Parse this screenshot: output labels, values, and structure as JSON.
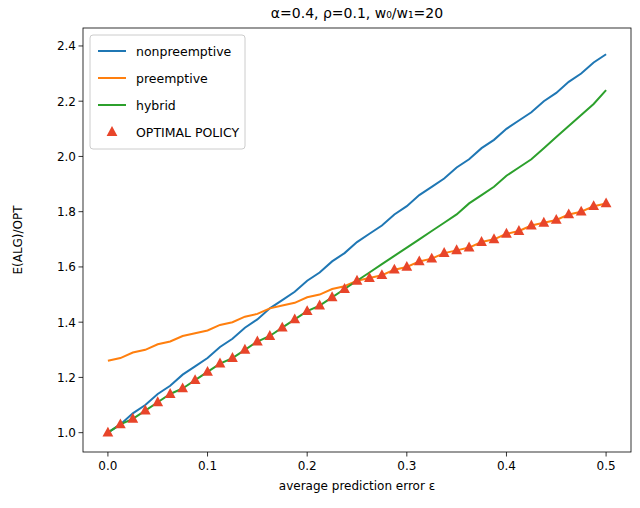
{
  "chart_data": {
    "type": "line",
    "title": "α=0.4, ρ=0.1, w₀/w₁=20",
    "x_label": "average prediction error ε",
    "y_label": "E(ALG)/OPT",
    "x": [
      0,
      0.0125,
      0.025,
      0.0375,
      0.05,
      0.0625,
      0.075,
      0.0875,
      0.1,
      0.1125,
      0.125,
      0.1375,
      0.15,
      0.1625,
      0.175,
      0.1875,
      0.2,
      0.2125,
      0.225,
      0.2375,
      0.25,
      0.2625,
      0.275,
      0.2875,
      0.3,
      0.3125,
      0.325,
      0.3375,
      0.35,
      0.3625,
      0.375,
      0.3875,
      0.4,
      0.4125,
      0.425,
      0.4375,
      0.45,
      0.4625,
      0.475,
      0.4875,
      0.5
    ],
    "series": [
      {
        "name": "nonpreemptive",
        "color": "#1f77b4",
        "type": "line",
        "line_style": "solid",
        "values": [
          1.0,
          1.03,
          1.07,
          1.1,
          1.14,
          1.17,
          1.21,
          1.24,
          1.27,
          1.31,
          1.34,
          1.38,
          1.41,
          1.45,
          1.48,
          1.51,
          1.55,
          1.58,
          1.62,
          1.65,
          1.69,
          1.72,
          1.75,
          1.79,
          1.82,
          1.86,
          1.89,
          1.92,
          1.96,
          1.99,
          2.03,
          2.06,
          2.1,
          2.13,
          2.16,
          2.2,
          2.23,
          2.27,
          2.3,
          2.34,
          2.37
        ]
      },
      {
        "name": "preemptive",
        "color": "#ff7f0e",
        "type": "line",
        "line_style": "solid",
        "values": [
          1.26,
          1.27,
          1.29,
          1.3,
          1.32,
          1.33,
          1.35,
          1.36,
          1.37,
          1.39,
          1.4,
          1.42,
          1.43,
          1.45,
          1.46,
          1.47,
          1.49,
          1.5,
          1.52,
          1.53,
          1.55,
          1.56,
          1.57,
          1.59,
          1.6,
          1.62,
          1.63,
          1.65,
          1.66,
          1.67,
          1.69,
          1.7,
          1.72,
          1.73,
          1.75,
          1.76,
          1.77,
          1.79,
          1.8,
          1.82,
          1.83
        ]
      },
      {
        "name": "hybrid",
        "color": "#2ca02c",
        "type": "line",
        "line_style": "solid",
        "values": [
          1.0,
          1.03,
          1.05,
          1.08,
          1.11,
          1.14,
          1.16,
          1.19,
          1.22,
          1.25,
          1.27,
          1.3,
          1.33,
          1.35,
          1.38,
          1.41,
          1.44,
          1.46,
          1.49,
          1.52,
          1.55,
          1.58,
          1.61,
          1.64,
          1.67,
          1.7,
          1.73,
          1.76,
          1.79,
          1.83,
          1.86,
          1.89,
          1.93,
          1.96,
          1.99,
          2.03,
          2.07,
          2.11,
          2.15,
          2.19,
          2.24
        ]
      },
      {
        "name": "OPTIMAL POLICY",
        "color": "#e8452a",
        "type": "scatter",
        "marker": "triangle",
        "values": [
          1.0,
          1.03,
          1.05,
          1.08,
          1.11,
          1.14,
          1.16,
          1.19,
          1.22,
          1.25,
          1.27,
          1.3,
          1.33,
          1.35,
          1.38,
          1.41,
          1.44,
          1.46,
          1.49,
          1.52,
          1.55,
          1.56,
          1.57,
          1.59,
          1.6,
          1.62,
          1.63,
          1.65,
          1.66,
          1.67,
          1.69,
          1.7,
          1.72,
          1.73,
          1.75,
          1.76,
          1.77,
          1.79,
          1.8,
          1.82,
          1.83
        ]
      }
    ],
    "xlim": [
      -0.025,
      0.525
    ],
    "ylim": [
      0.93,
      2.465
    ],
    "xticks": [
      {
        "value": 0,
        "label": "0.0"
      },
      0.1,
      0.2,
      0.3,
      0.4,
      0.5
    ],
    "yticks": [
      {
        "value": 1,
        "label": "1.0"
      },
      1.2,
      1.4,
      1.6,
      1.8,
      {
        "value": 2,
        "label": "2.0"
      },
      2.2,
      2.4
    ],
    "legend": "upper left",
    "grid": false
  }
}
